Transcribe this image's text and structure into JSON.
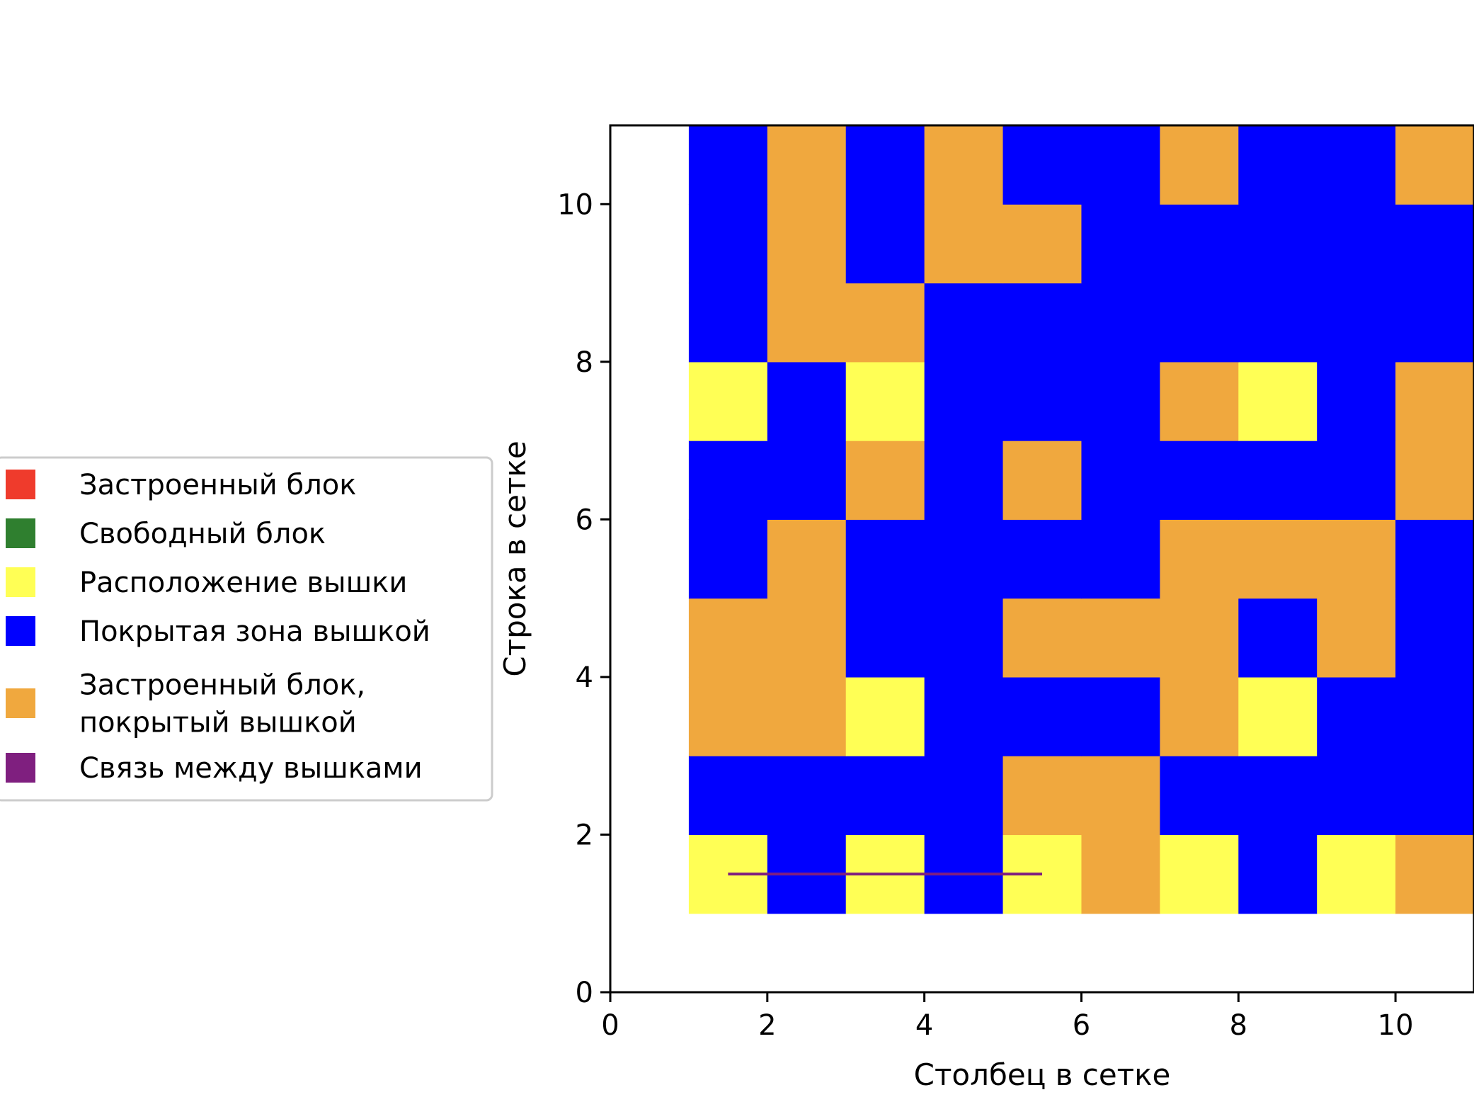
{
  "chart_data": {
    "type": "heatmap",
    "xlabel": "Столбец в сетке",
    "ylabel": "Строка в сетке",
    "xlim": [
      0,
      11
    ],
    "ylim": [
      0,
      11
    ],
    "xticks": [
      0,
      2,
      4,
      6,
      8,
      10
    ],
    "yticks": [
      0,
      2,
      4,
      6,
      8,
      10
    ],
    "xtick_labels": [
      "0",
      "2",
      "4",
      "6",
      "8",
      "10"
    ],
    "ytick_labels": [
      "0",
      "2",
      "4",
      "6",
      "8",
      "10"
    ],
    "grid": false,
    "legend_position": "outside-left",
    "categories": [
      {
        "key": "built",
        "label": "Застроенный блок",
        "color": "#ef3b2c"
      },
      {
        "key": "free",
        "label": "Свободный блок",
        "color": "#2f7f2f"
      },
      {
        "key": "tower",
        "label": "Расположение вышки",
        "color": "#ffff55"
      },
      {
        "key": "covered",
        "label": "Покрытая зона вышкой",
        "color": "#0000ff"
      },
      {
        "key": "built_covered",
        "label": "Застроенный блок,\nпокрытый вышкой",
        "color": "#f0a83e"
      },
      {
        "key": "link",
        "label": "Связь между вышками",
        "color": "#7f1f7f"
      }
    ],
    "cell_codes": {
      "Y": "tower",
      "B": "covered",
      "O": "built_covered"
    },
    "grid_rows": [
      {
        "row": 1,
        "x_start": 1,
        "cells": [
          "Y",
          "B",
          "Y",
          "B",
          "Y",
          "O",
          "Y",
          "B",
          "Y",
          "O"
        ]
      },
      {
        "row": 2,
        "x_start": 1,
        "cells": [
          "B",
          "B",
          "B",
          "B",
          "O",
          "O",
          "B",
          "B",
          "B",
          "B"
        ]
      },
      {
        "row": 3,
        "x_start": 1,
        "cells": [
          "O",
          "O",
          "Y",
          "B",
          "B",
          "B",
          "O",
          "Y",
          "B",
          "B"
        ]
      },
      {
        "row": 4,
        "x_start": 1,
        "cells": [
          "O",
          "O",
          "B",
          "B",
          "O",
          "O",
          "O",
          "B",
          "O",
          "B"
        ]
      },
      {
        "row": 5,
        "x_start": 1,
        "cells": [
          "B",
          "O",
          "B",
          "B",
          "B",
          "B",
          "O",
          "O",
          "O",
          "B"
        ]
      },
      {
        "row": 6,
        "x_start": 1,
        "cells": [
          "B",
          "B",
          "O",
          "B",
          "O",
          "B",
          "B",
          "B",
          "B",
          "O"
        ]
      },
      {
        "row": 7,
        "x_start": 1,
        "cells": [
          "Y",
          "B",
          "Y",
          "B",
          "B",
          "B",
          "O",
          "Y",
          "B",
          "O"
        ]
      },
      {
        "row": 8,
        "x_start": 1,
        "cells": [
          "B",
          "O",
          "O",
          "B",
          "B",
          "B",
          "B",
          "B",
          "B",
          "B"
        ]
      },
      {
        "row": 9,
        "x_start": 1,
        "cells": [
          "B",
          "O",
          "B",
          "O",
          "O",
          "B",
          "B",
          "B",
          "B",
          "B"
        ]
      },
      {
        "row": 10,
        "x_start": 1,
        "cells": [
          "B",
          "O",
          "B",
          "O",
          "B",
          "B",
          "O",
          "B",
          "B",
          "O"
        ]
      }
    ],
    "links": [
      {
        "from": [
          1.5,
          1.5
        ],
        "to": [
          5.5,
          1.5
        ]
      }
    ]
  }
}
